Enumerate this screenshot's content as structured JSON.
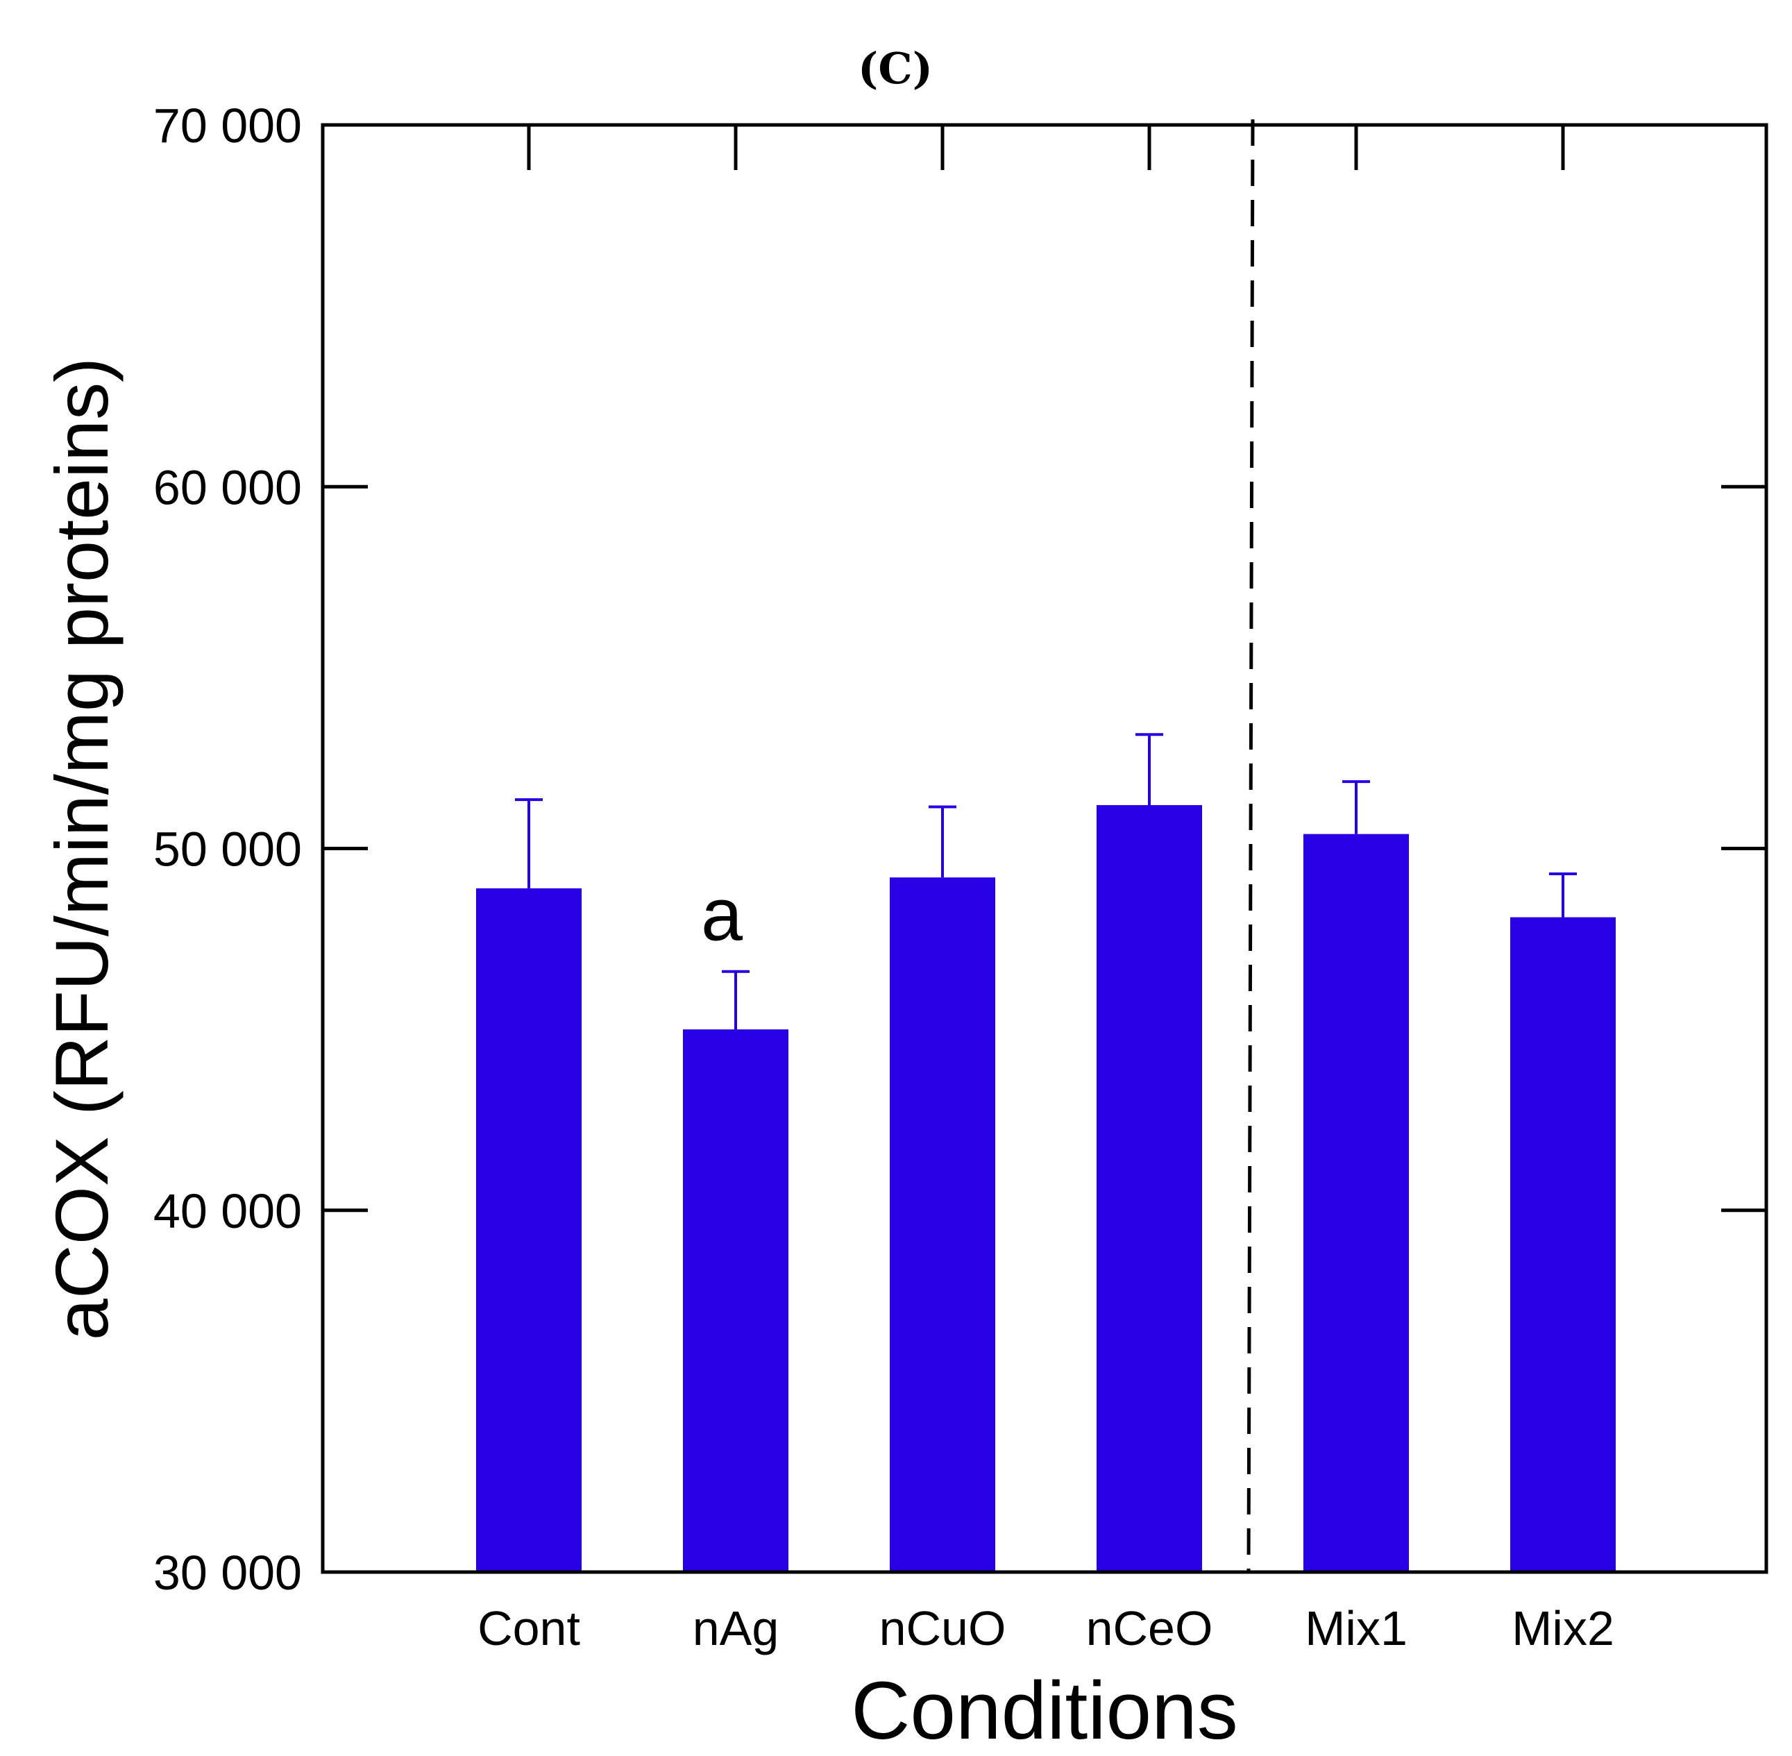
{
  "chart_data": {
    "type": "bar",
    "title": "(C)",
    "xlabel": "Conditions",
    "ylabel": "aCOX (RFU/min/mg proteins)",
    "categories": [
      "Cont",
      "nAg",
      "nCuO",
      "nCeO",
      "Mix1",
      "Mix2"
    ],
    "values": [
      48900,
      45000,
      49200,
      51200,
      50400,
      48100
    ],
    "errors": [
      2450,
      1600,
      1950,
      1950,
      1450,
      1200
    ],
    "annotations": [
      {
        "category": "nAg",
        "text": "a"
      }
    ],
    "ylim": [
      30000,
      70000
    ],
    "yticks": [
      30000,
      40000,
      50000,
      60000,
      70000
    ],
    "ytick_labels": [
      "30 000",
      "40 000",
      "50 000",
      "60 000",
      "70 000"
    ],
    "separator_after_category": "nCeO",
    "grid": false,
    "bar_color": "#2800e6",
    "axis_color": "#000000"
  }
}
